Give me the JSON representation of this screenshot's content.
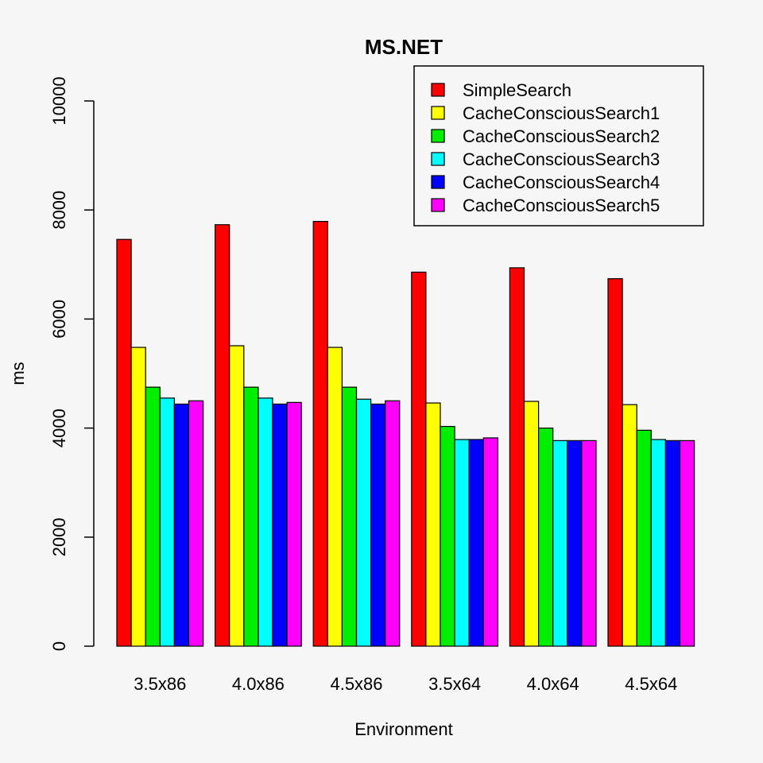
{
  "chart_data": {
    "type": "bar",
    "title": "MS.NET",
    "xlabel": "Environment",
    "ylabel": "ms",
    "ylim": [
      0,
      10000
    ],
    "yticks": [
      0,
      2000,
      4000,
      6000,
      8000,
      10000
    ],
    "ytick_labels": [
      "0",
      "2000",
      "4000",
      "6000",
      "8000",
      "10000"
    ],
    "categories": [
      "3.5x86",
      "4.0x86",
      "4.5x86",
      "3.5x64",
      "4.0x64",
      "4.5x64"
    ],
    "legend_position": "top-right",
    "grid": false,
    "series": [
      {
        "name": "SimpleSearch",
        "color": "#ff0000",
        "values": [
          7460,
          7730,
          7790,
          6860,
          6940,
          6740
        ]
      },
      {
        "name": "CacheConsciousSearch1",
        "color": "#ffff00",
        "values": [
          5480,
          5510,
          5480,
          4460,
          4490,
          4430
        ]
      },
      {
        "name": "CacheConsciousSearch2",
        "color": "#00ee00",
        "values": [
          4750,
          4750,
          4750,
          4030,
          4000,
          3960
        ]
      },
      {
        "name": "CacheConsciousSearch3",
        "color": "#00ffff",
        "values": [
          4550,
          4550,
          4530,
          3790,
          3770,
          3790
        ]
      },
      {
        "name": "CacheConsciousSearch4",
        "color": "#0000ff",
        "values": [
          4440,
          4440,
          4440,
          3790,
          3770,
          3770
        ]
      },
      {
        "name": "CacheConsciousSearch5",
        "color": "#ff00ff",
        "values": [
          4500,
          4470,
          4500,
          3820,
          3770,
          3770
        ]
      }
    ]
  }
}
